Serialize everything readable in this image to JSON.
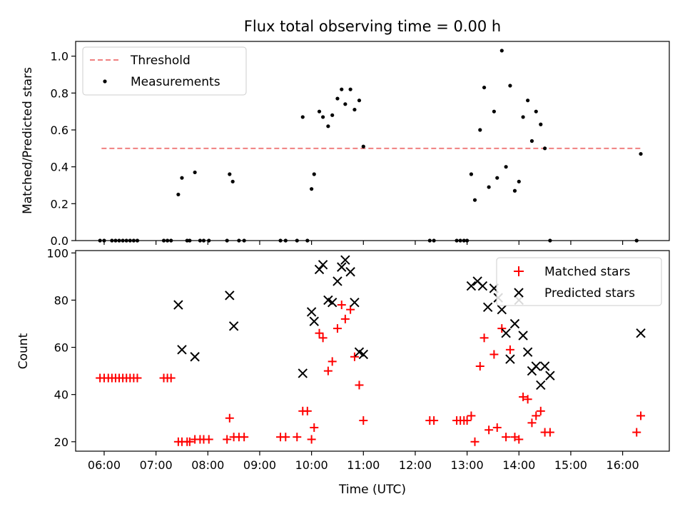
{
  "chart_data": [
    {
      "type": "scatter",
      "title": "Flux total observing time = 0.00 h",
      "xlabel": "",
      "ylabel": "Matched/Predicted stars",
      "xlim": [
        5.45,
        16.9
      ],
      "ylim": [
        0,
        1.08
      ],
      "yticks": [
        0.0,
        0.2,
        0.4,
        0.6,
        0.8,
        1.0
      ],
      "ytick_labels": [
        "0.0",
        "0.2",
        "0.4",
        "0.6",
        "0.8",
        "1.0"
      ],
      "xticks": [
        6,
        7,
        8,
        9,
        10,
        11,
        12,
        13,
        14,
        15,
        16
      ],
      "legend": {
        "position": "top-left",
        "entries": [
          "Threshold",
          "Measurements"
        ]
      },
      "series": [
        {
          "name": "Threshold",
          "kind": "line",
          "color": "#f08080",
          "x": [
            5.95,
            16.35
          ],
          "y": [
            0.5,
            0.5
          ]
        },
        {
          "name": "Measurements",
          "kind": "scatter",
          "color": "#000000",
          "x": [
            5.92,
            6.0,
            6.15,
            6.22,
            6.29,
            6.36,
            6.43,
            6.5,
            6.57,
            6.64,
            7.15,
            7.22,
            7.29,
            7.43,
            7.5,
            7.6,
            7.65,
            7.75,
            7.85,
            7.92,
            8.02,
            8.37,
            8.42,
            8.48,
            8.6,
            8.7,
            9.4,
            9.5,
            9.72,
            9.83,
            9.92,
            10.0,
            10.05,
            10.15,
            10.22,
            10.32,
            10.4,
            10.5,
            10.58,
            10.65,
            10.75,
            10.83,
            10.92,
            11.0,
            12.28,
            12.36,
            12.8,
            12.87,
            12.94,
            13.0,
            13.08,
            13.15,
            13.25,
            13.33,
            13.42,
            13.52,
            13.58,
            13.67,
            13.75,
            13.83,
            13.92,
            14.0,
            14.08,
            14.17,
            14.25,
            14.33,
            14.42,
            14.5,
            14.6,
            16.27,
            16.35
          ],
          "y": [
            0,
            0,
            0,
            0,
            0,
            0,
            0,
            0,
            0,
            0,
            0,
            0,
            0,
            0.25,
            0.34,
            0,
            0,
            0.37,
            0,
            0,
            0,
            0,
            0.36,
            0.32,
            0,
            0,
            0,
            0,
            0,
            0.67,
            0,
            0.28,
            0.36,
            0.7,
            0.67,
            0.62,
            0.68,
            0.77,
            0.82,
            0.74,
            0.82,
            0.71,
            0.76,
            0.51,
            0,
            0,
            0,
            0,
            0,
            0,
            0.36,
            0.22,
            0.6,
            0.83,
            0.29,
            0.7,
            0.34,
            1.03,
            0.4,
            0.84,
            0.27,
            0.32,
            0.67,
            0.76,
            0.54,
            0.7,
            0.63,
            0.5,
            0,
            0,
            0.47
          ]
        }
      ]
    },
    {
      "type": "scatter",
      "title": "",
      "xlabel": "Time (UTC)",
      "ylabel": "Count",
      "xlim": [
        5.45,
        16.9
      ],
      "ylim": [
        16,
        101
      ],
      "yticks": [
        20,
        40,
        60,
        80,
        100
      ],
      "ytick_labels": [
        "20",
        "40",
        "60",
        "80",
        "100"
      ],
      "xticks": [
        6,
        7,
        8,
        9,
        10,
        11,
        12,
        13,
        14,
        15,
        16
      ],
      "xtick_labels": [
        "06:00",
        "07:00",
        "08:00",
        "09:00",
        "10:00",
        "11:00",
        "12:00",
        "13:00",
        "14:00",
        "15:00",
        "16:00"
      ],
      "legend": {
        "position": "top-right",
        "entries": [
          "Matched stars",
          "Predicted stars"
        ]
      },
      "series": [
        {
          "name": "Matched stars",
          "marker": "plus",
          "color": "#ff0000",
          "x": [
            5.92,
            6.0,
            6.08,
            6.15,
            6.22,
            6.29,
            6.36,
            6.43,
            6.5,
            6.57,
            6.64,
            7.15,
            7.22,
            7.29,
            7.43,
            7.5,
            7.6,
            7.65,
            7.75,
            7.85,
            7.92,
            8.02,
            8.37,
            8.42,
            8.5,
            8.6,
            8.7,
            9.4,
            9.5,
            9.72,
            9.83,
            9.92,
            10.0,
            10.05,
            10.15,
            10.22,
            10.32,
            10.4,
            10.5,
            10.58,
            10.65,
            10.75,
            10.83,
            10.92,
            11.0,
            12.28,
            12.36,
            12.8,
            12.87,
            12.94,
            13.0,
            13.08,
            13.15,
            13.25,
            13.33,
            13.42,
            13.52,
            13.58,
            13.67,
            13.75,
            13.83,
            13.92,
            14.0,
            14.08,
            14.17,
            14.25,
            14.33,
            14.42,
            14.5,
            14.6,
            16.27,
            16.35
          ],
          "y": [
            47,
            47,
            47,
            47,
            47,
            47,
            47,
            47,
            47,
            47,
            47,
            47,
            47,
            47,
            20,
            20,
            20,
            20,
            21,
            21,
            21,
            21,
            21,
            30,
            22,
            22,
            22,
            22,
            22,
            22,
            33,
            33,
            21,
            26,
            66,
            64,
            50,
            54,
            68,
            78,
            72,
            76,
            56,
            44,
            29,
            29,
            29,
            29,
            29,
            29,
            29,
            31,
            20,
            52,
            64,
            25,
            57,
            26,
            68,
            22,
            59,
            22,
            21,
            39,
            38,
            28,
            31,
            33,
            24,
            24,
            24,
            31
          ]
        },
        {
          "name": "Predicted stars",
          "marker": "x",
          "color": "#000000",
          "x": [
            7.43,
            7.5,
            7.75,
            8.42,
            8.5,
            9.83,
            10.0,
            10.05,
            10.15,
            10.22,
            10.32,
            10.4,
            10.5,
            10.58,
            10.65,
            10.75,
            10.83,
            10.92,
            11.0,
            13.08,
            13.2,
            13.3,
            13.4,
            13.52,
            13.6,
            13.67,
            13.75,
            13.83,
            13.92,
            14.0,
            14.08,
            14.17,
            14.25,
            14.33,
            14.42,
            14.5,
            14.6,
            16.35
          ],
          "y": [
            78,
            59,
            56,
            82,
            69,
            49,
            75,
            71,
            93,
            95,
            80,
            79,
            88,
            94,
            97,
            92,
            79,
            58,
            57,
            86,
            88,
            86,
            77,
            85,
            81,
            76,
            66,
            55,
            70,
            80,
            65,
            58,
            50,
            52,
            44,
            52,
            48,
            66
          ]
        }
      ]
    }
  ]
}
